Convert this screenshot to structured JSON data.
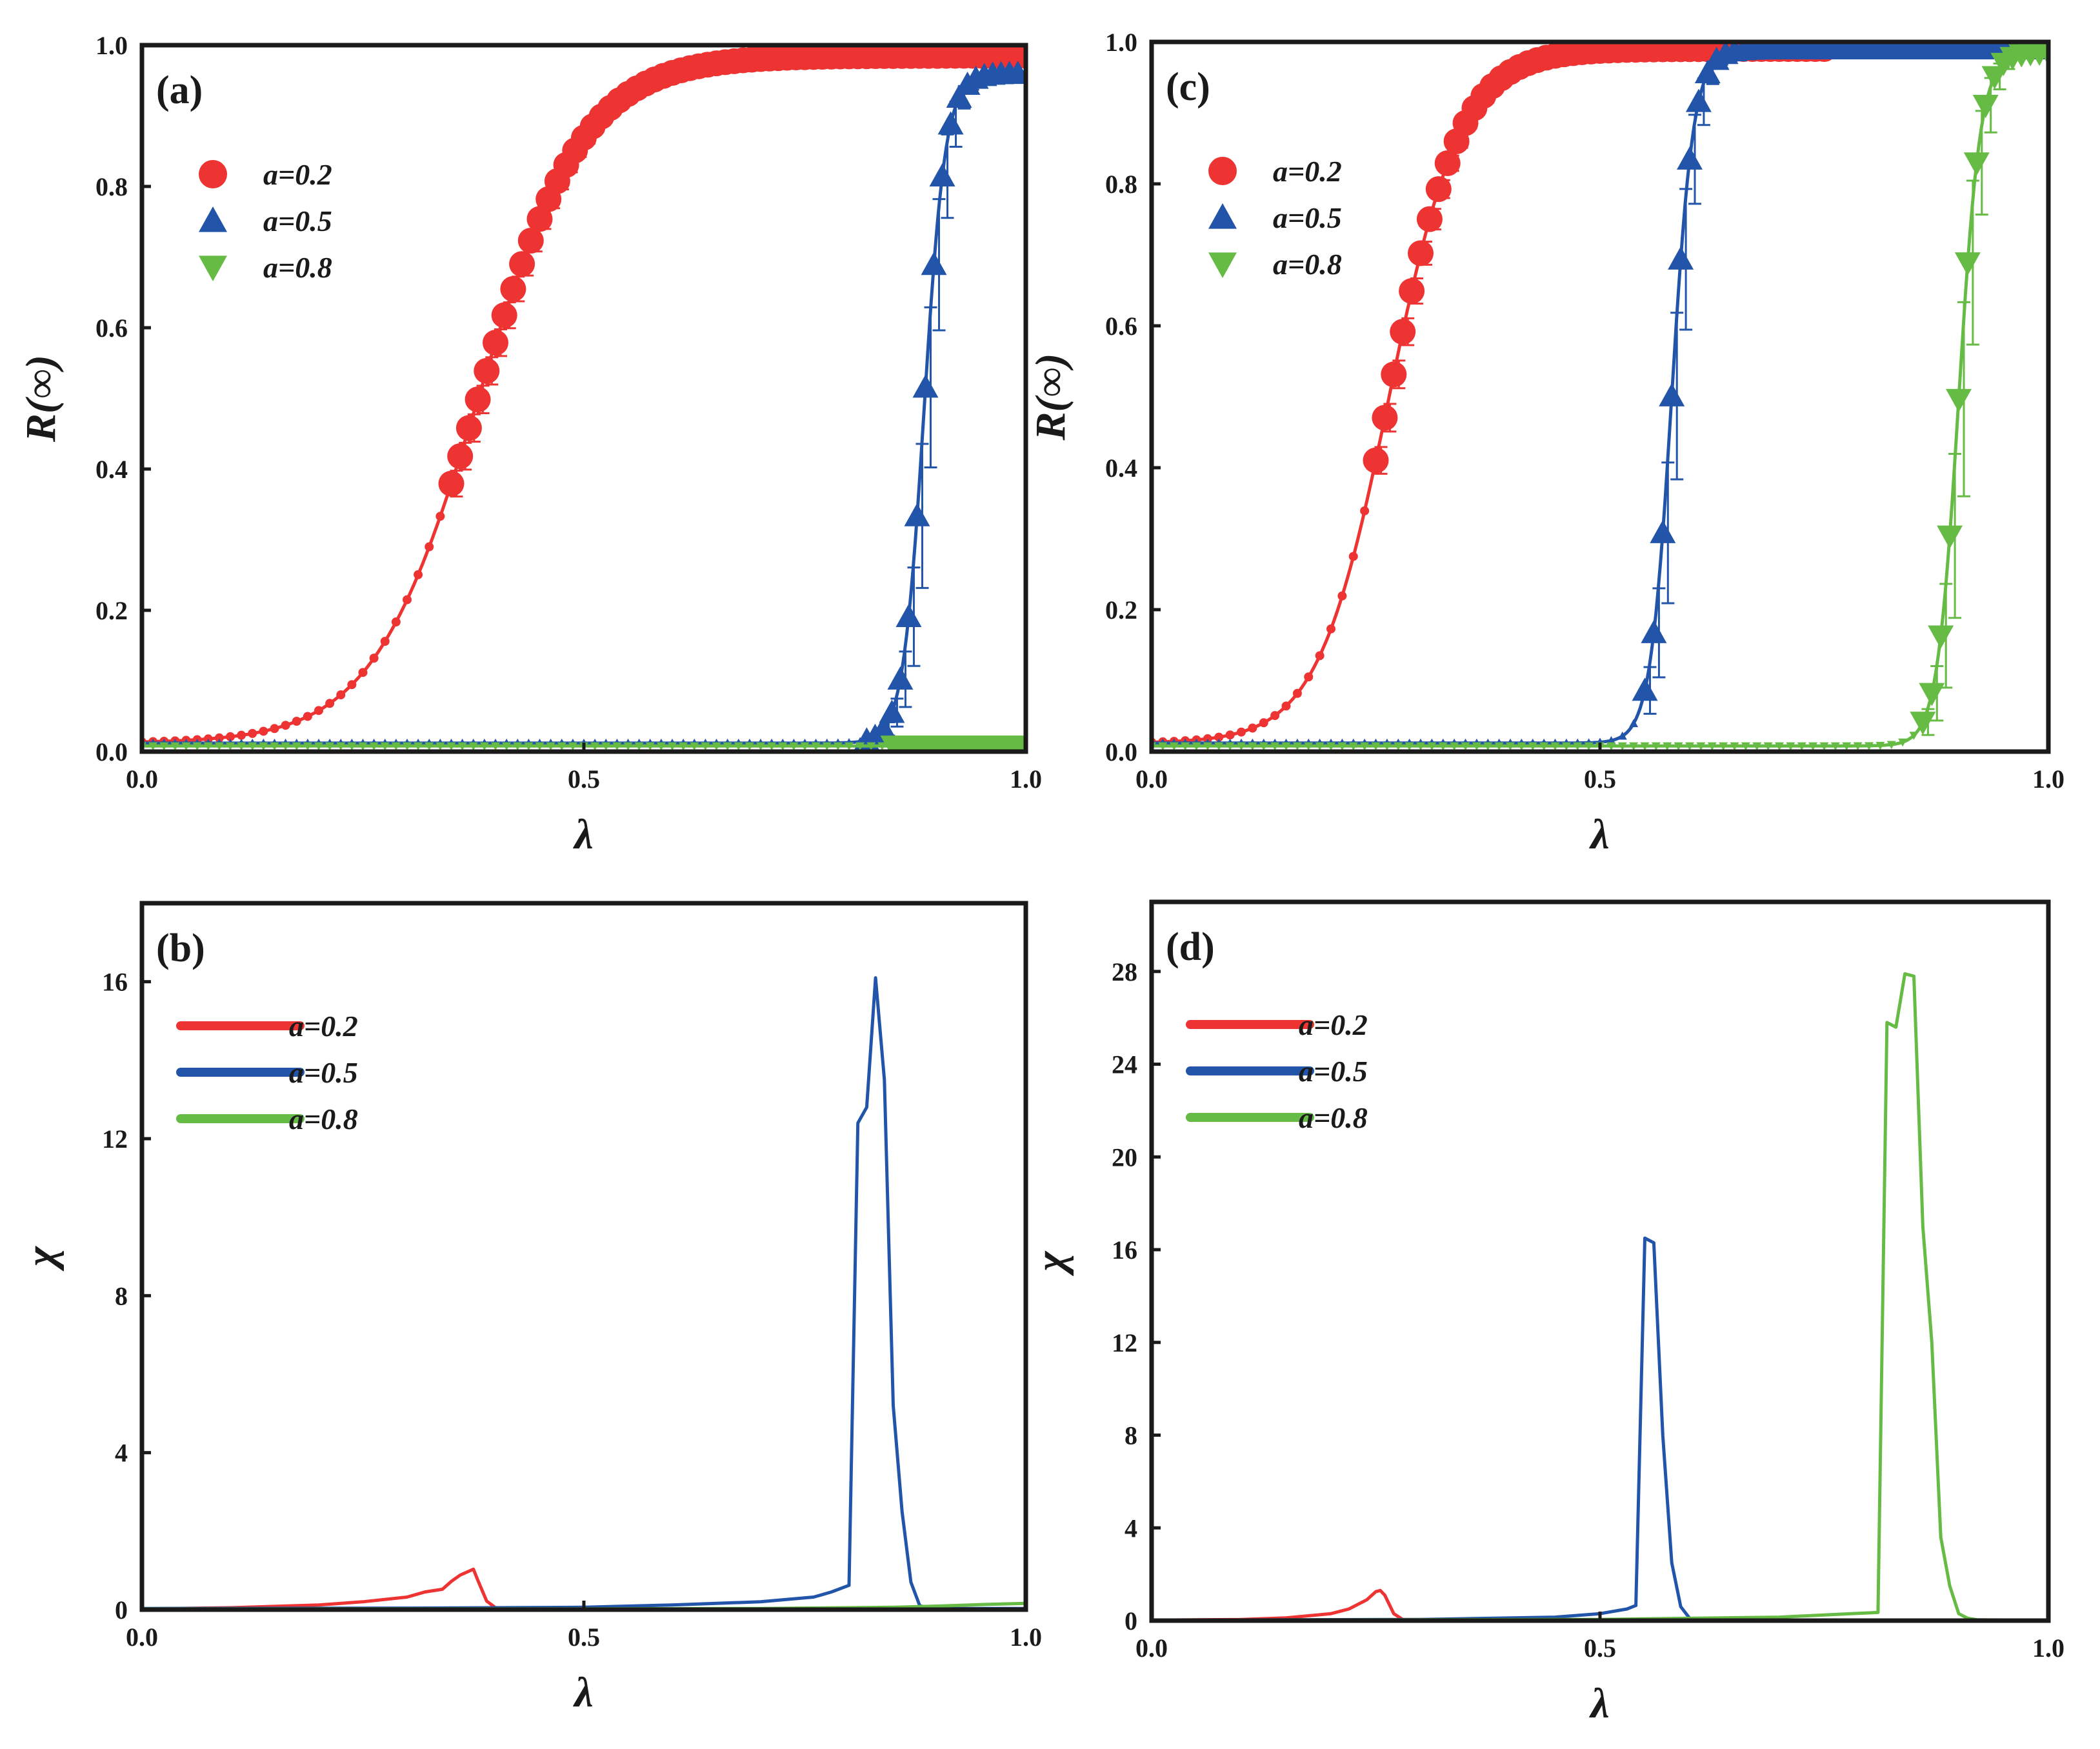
{
  "figure": {
    "panel_count": 4
  },
  "colors": {
    "a02": "#ee3333",
    "a05": "#2255aa",
    "a08": "#66bb44",
    "axis": "#1a1a1a"
  },
  "chart_data": [
    {
      "id": "a",
      "type": "scatter",
      "label": "(a)",
      "xlabel": "λ",
      "ylabel": "R(∞)",
      "xlim": [
        0,
        1
      ],
      "ylim": [
        0,
        1
      ],
      "xticks": [
        0,
        0.5,
        1
      ],
      "xtick_labels": [
        "0.0",
        "0.5",
        "1.0"
      ],
      "yticks": [
        0,
        0.2,
        0.4,
        0.6,
        0.8,
        1.0
      ],
      "ytick_labels": [
        "0.0",
        "0.2",
        "0.4",
        "0.6",
        "0.8",
        "1.0"
      ],
      "legend_location": "upper-left",
      "legend_style": "markers",
      "series": [
        {
          "name": "a=0.2",
          "marker": "circle",
          "color": "#ee3333",
          "lambda_c": 0.38,
          "tau": 0.06,
          "plateau": 0.985,
          "baseline": 0.012,
          "curve_end": 1.0,
          "marker_start": 0.35,
          "marker_step": 0.01,
          "err": 0.02
        },
        {
          "name": "a=0.5",
          "marker": "triangle-up",
          "color": "#2255aa",
          "lambda_c": 0.885,
          "tau": 0.012,
          "plateau": 0.96,
          "baseline": 0.012,
          "curve_end": 1.0,
          "marker_start": 0.82,
          "marker_step": 0.0095,
          "err": 0.12
        },
        {
          "name": "a=0.8",
          "marker": "triangle-down",
          "color": "#66bb44",
          "lambda_c": 1.5,
          "tau": 0.02,
          "plateau": 0.98,
          "baseline": 0.008,
          "curve_end": 1.0,
          "marker_start": 0.85,
          "marker_step": 0.01,
          "err": 0.0
        }
      ]
    },
    {
      "id": "b",
      "type": "line",
      "label": "(b)",
      "xlabel": "λ",
      "ylabel": "χ",
      "xlim": [
        0,
        1
      ],
      "ylim": [
        0,
        18
      ],
      "xticks": [
        0,
        0.5,
        1
      ],
      "xtick_labels": [
        "0.0",
        "0.5",
        "1.0"
      ],
      "yticks": [
        0,
        4,
        8,
        12,
        16
      ],
      "ytick_labels": [
        "0",
        "4",
        "8",
        "12",
        "16"
      ],
      "legend_location": "upper-left",
      "legend_style": "lines",
      "series": [
        {
          "name": "a=0.2",
          "color": "#ee3333",
          "x": [
            0.0,
            0.1,
            0.2,
            0.25,
            0.3,
            0.32,
            0.34,
            0.35,
            0.36,
            0.37,
            0.375,
            0.38,
            0.39,
            0.4,
            0.5,
            0.7,
            0.9,
            1.0
          ],
          "y": [
            0.02,
            0.05,
            0.12,
            0.2,
            0.32,
            0.45,
            0.52,
            0.72,
            0.88,
            0.98,
            1.03,
            0.75,
            0.22,
            0.05,
            0.03,
            0.02,
            0.02,
            0.02
          ]
        },
        {
          "name": "a=0.5",
          "color": "#2255aa",
          "x": [
            0.0,
            0.3,
            0.5,
            0.6,
            0.7,
            0.76,
            0.78,
            0.8,
            0.81,
            0.82,
            0.83,
            0.84,
            0.85,
            0.86,
            0.87,
            0.88,
            0.89,
            0.9,
            1.0
          ],
          "y": [
            0.03,
            0.04,
            0.06,
            0.12,
            0.2,
            0.32,
            0.45,
            0.62,
            12.4,
            12.8,
            16.1,
            13.5,
            5.2,
            2.5,
            0.7,
            0.1,
            0.04,
            0.03,
            0.03
          ]
        },
        {
          "name": "a=0.8",
          "color": "#66bb44",
          "x": [
            0.0,
            0.5,
            0.7,
            0.8,
            0.85,
            0.9,
            0.95,
            1.0
          ],
          "y": [
            0.02,
            0.02,
            0.03,
            0.05,
            0.06,
            0.09,
            0.13,
            0.16
          ]
        }
      ]
    },
    {
      "id": "c",
      "type": "scatter",
      "label": "(c)",
      "xlabel": "λ",
      "ylabel": "R(∞)",
      "xlim": [
        0,
        1
      ],
      "ylim": [
        0,
        1
      ],
      "xticks": [
        0,
        0.5,
        1
      ],
      "xtick_labels": [
        "0.0",
        "0.5",
        "1.0"
      ],
      "yticks": [
        0,
        0.2,
        0.4,
        0.6,
        0.8,
        1.0
      ],
      "ytick_labels": [
        "0.0",
        "0.2",
        "0.4",
        "0.6",
        "0.8",
        "1.0"
      ],
      "legend_location": "upper-left",
      "legend_style": "markers",
      "series": [
        {
          "name": "a=0.2",
          "marker": "circle",
          "color": "#ee3333",
          "lambda_c": 0.265,
          "tau": 0.04,
          "plateau": 0.99,
          "baseline": 0.012,
          "curve_end": 0.75,
          "marker_start": 0.25,
          "marker_step": 0.01,
          "err": 0.02
        },
        {
          "name": "a=0.5",
          "marker": "triangle-up",
          "color": "#2255aa",
          "lambda_c": 0.58,
          "tau": 0.012,
          "plateau": 0.99,
          "baseline": 0.012,
          "curve_end": 1.0,
          "marker_start": 0.55,
          "marker_step": 0.01,
          "err": 0.12
        },
        {
          "name": "a=0.8",
          "marker": "triangle-down",
          "color": "#66bb44",
          "lambda_c": 0.9,
          "tau": 0.012,
          "plateau": 0.985,
          "baseline": 0.008,
          "curve_end": 1.0,
          "marker_start": 0.86,
          "marker_step": 0.01,
          "err": 0.14
        }
      ]
    },
    {
      "id": "d",
      "type": "line",
      "label": "(d)",
      "xlabel": "λ",
      "ylabel": "χ",
      "xlim": [
        0,
        1
      ],
      "ylim": [
        0,
        31
      ],
      "xticks": [
        0,
        0.5,
        1
      ],
      "xtick_labels": [
        "0.0",
        "0.5",
        "1.0"
      ],
      "yticks": [
        0,
        4,
        8,
        12,
        16,
        20,
        24,
        28
      ],
      "ytick_labels": [
        "0",
        "4",
        "8",
        "12",
        "16",
        "20",
        "24",
        "28"
      ],
      "legend_location": "upper-left",
      "legend_style": "lines",
      "series": [
        {
          "name": "a=0.2",
          "color": "#ee3333",
          "x": [
            0.0,
            0.1,
            0.15,
            0.2,
            0.22,
            0.24,
            0.25,
            0.255,
            0.26,
            0.27,
            0.28,
            0.5,
            1.0
          ],
          "y": [
            0.02,
            0.05,
            0.12,
            0.3,
            0.5,
            0.9,
            1.25,
            1.3,
            1.1,
            0.3,
            0.05,
            0.03,
            0.02
          ]
        },
        {
          "name": "a=0.5",
          "color": "#2255aa",
          "x": [
            0.0,
            0.3,
            0.45,
            0.5,
            0.53,
            0.54,
            0.55,
            0.56,
            0.57,
            0.58,
            0.59,
            0.6,
            0.61,
            1.0
          ],
          "y": [
            0.02,
            0.05,
            0.15,
            0.3,
            0.5,
            0.65,
            16.5,
            16.3,
            8.0,
            2.5,
            0.6,
            0.1,
            0.03,
            0.02
          ]
        },
        {
          "name": "a=0.8",
          "color": "#66bb44",
          "x": [
            0.0,
            0.5,
            0.7,
            0.78,
            0.81,
            0.82,
            0.83,
            0.84,
            0.85,
            0.86,
            0.87,
            0.88,
            0.89,
            0.9,
            0.91,
            0.92,
            0.93,
            1.0
          ],
          "y": [
            0.02,
            0.05,
            0.15,
            0.3,
            0.35,
            25.8,
            25.6,
            27.9,
            27.8,
            17.0,
            12.0,
            3.6,
            1.5,
            0.3,
            0.1,
            0.04,
            0.03,
            0.02
          ]
        }
      ]
    }
  ]
}
